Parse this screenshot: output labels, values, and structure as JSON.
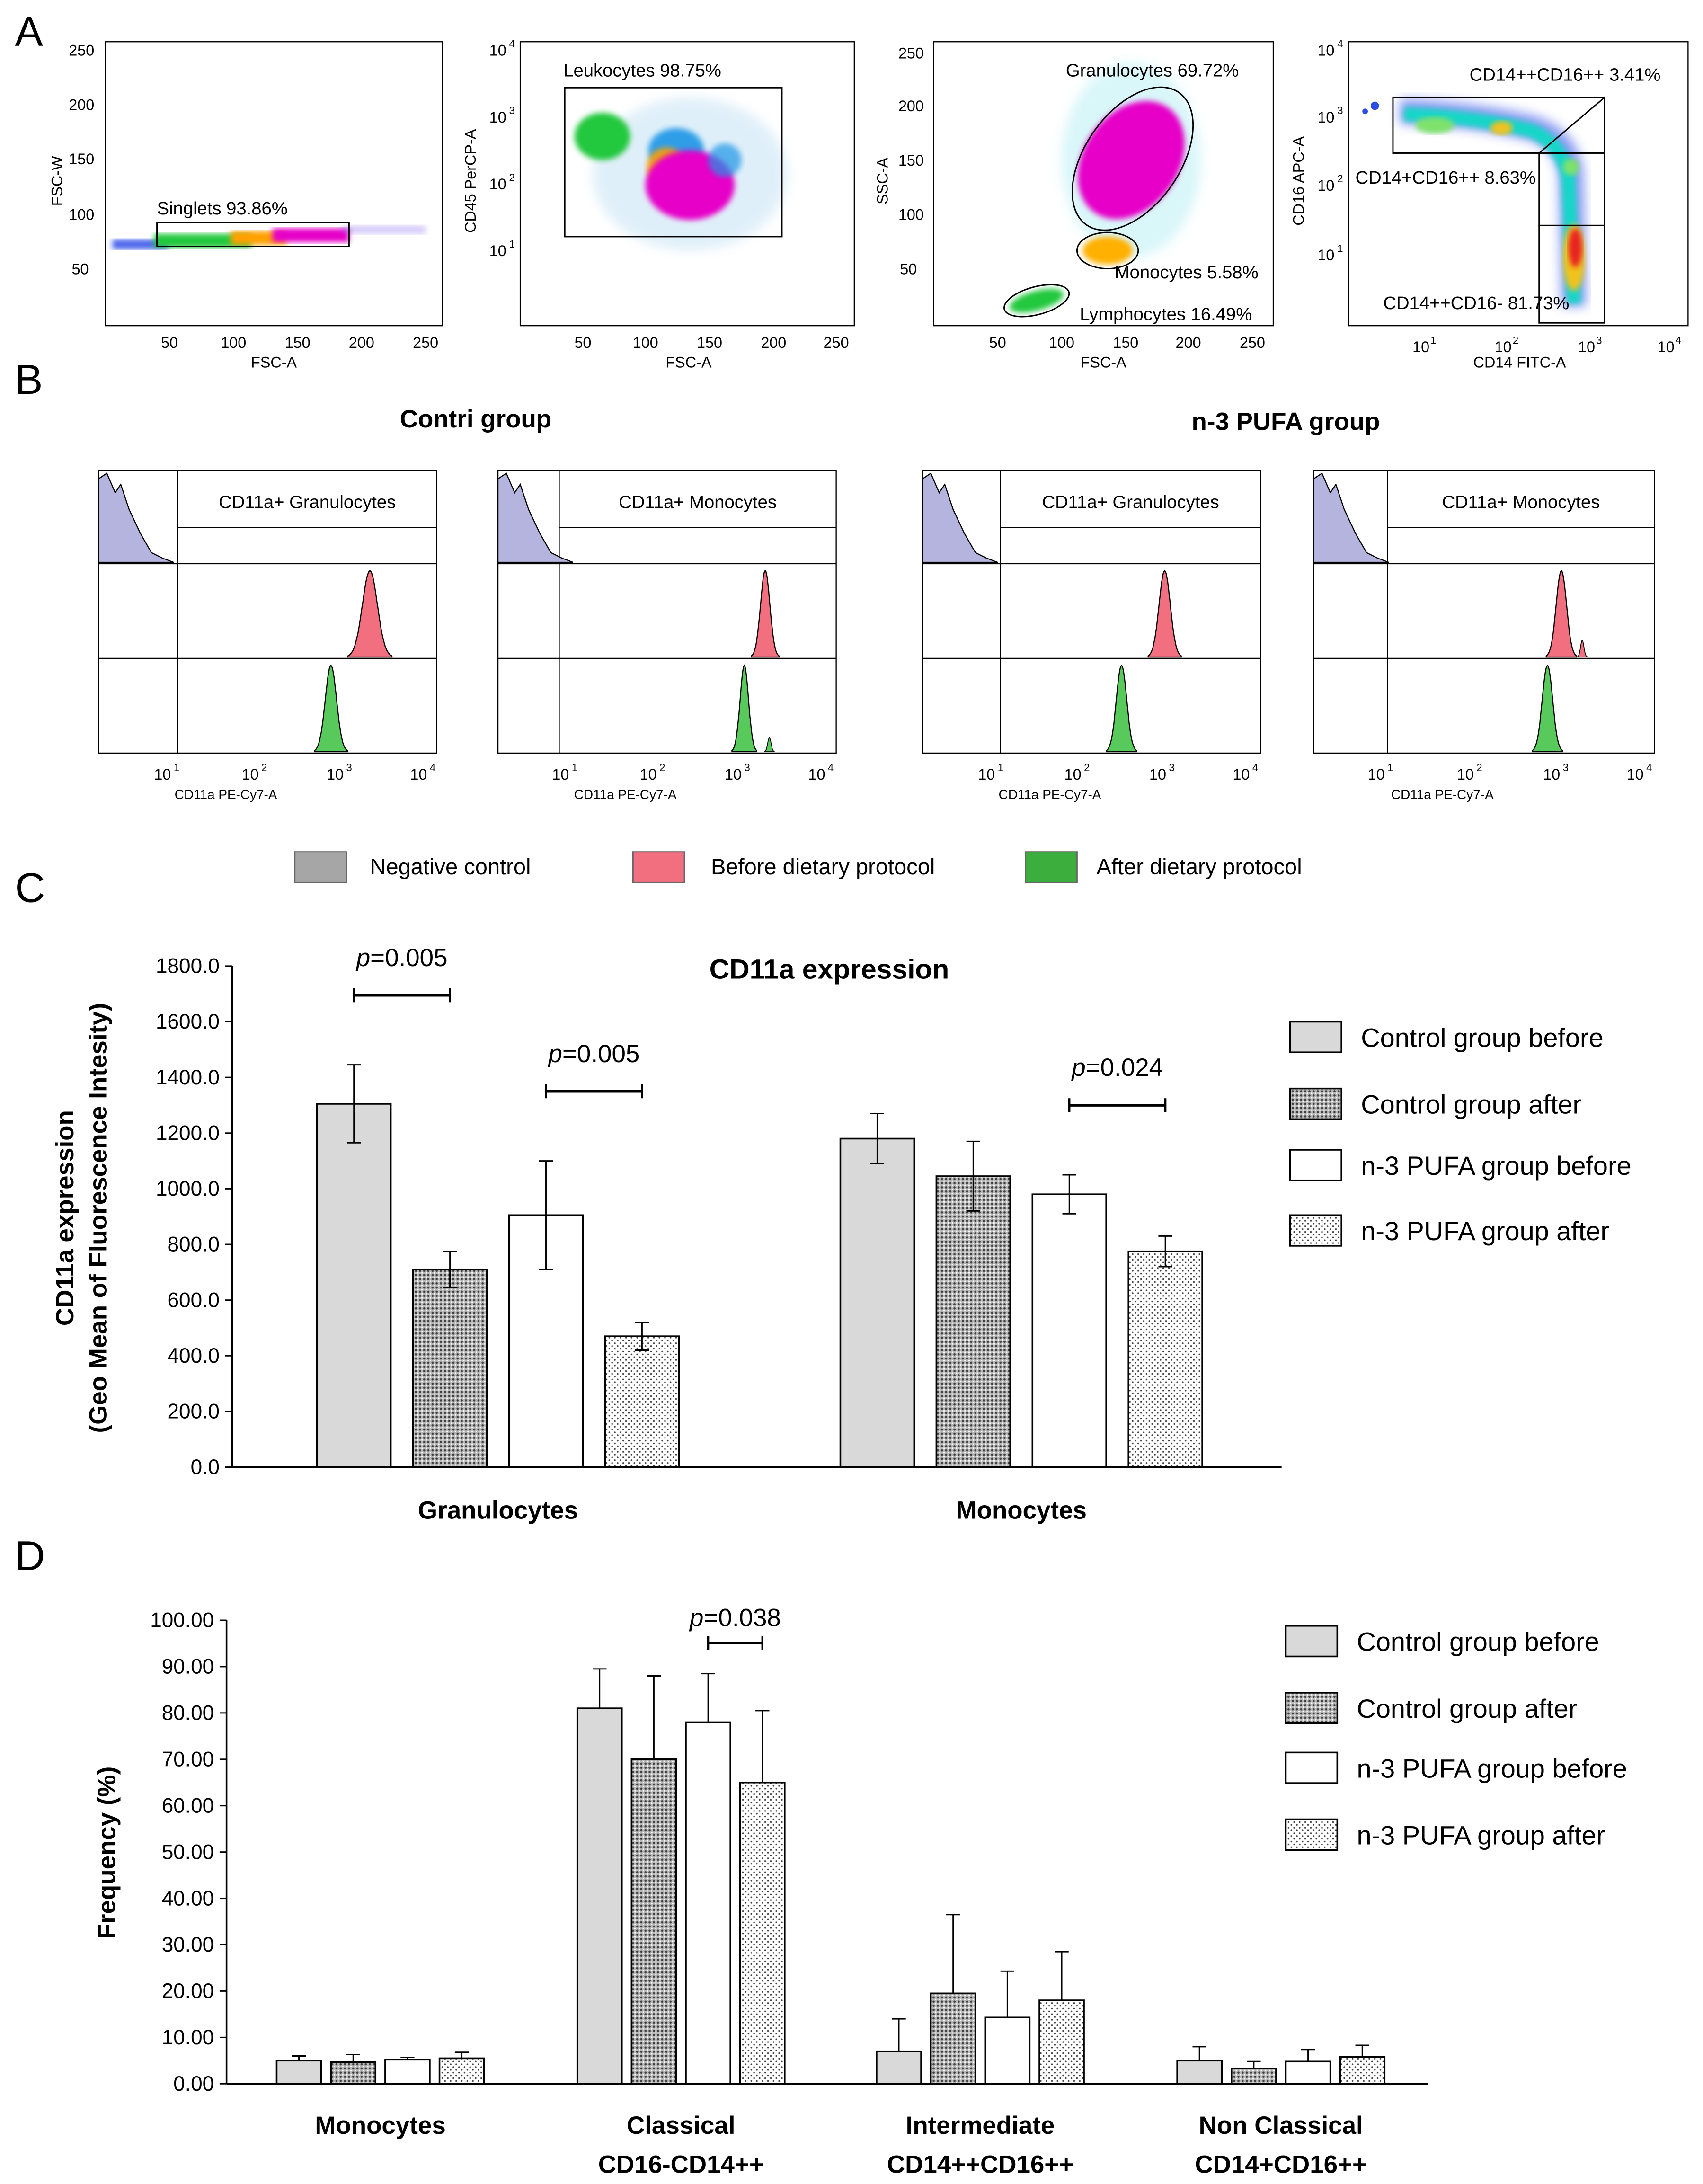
{
  "panels": {
    "a": "A",
    "b": "B",
    "c": "C",
    "d": "D"
  },
  "colors": {
    "neg": "#B4B4DE",
    "before": "#F26F80",
    "after": "#58C95B",
    "gray": "#D9D9D9"
  },
  "panel_a": {
    "plots": [
      {
        "xlabel": "FSC-A",
        "ylabel": "FSC-W",
        "gate": "Singlets 93.86%",
        "xticks": [
          "50",
          "100",
          "150",
          "200",
          "250"
        ],
        "yticks": [
          "250",
          "200",
          "150",
          "100",
          "50"
        ]
      },
      {
        "xlabel": "FSC-A",
        "ylabel": "CD45 PerCP-A",
        "gate": "Leukocytes 98.75%",
        "xticks": [
          "50",
          "100",
          "150",
          "200",
          "250"
        ],
        "yticks_log": [
          "10",
          "10",
          "10"
        ],
        "yexp": [
          "4",
          "3",
          "2",
          "1"
        ]
      },
      {
        "xlabel": "FSC-A",
        "ylabel": "SSC-A",
        "gates": [
          "Granulocytes 69.72%",
          "Monocytes 5.58%",
          "Lymphocytes 16.49%"
        ],
        "xticks": [
          "50",
          "100",
          "150",
          "200",
          "250"
        ],
        "yticks": [
          "250",
          "200",
          "150",
          "100",
          "50"
        ]
      },
      {
        "xlabel": "CD14 FITC-A",
        "ylabel": "CD16 APC-A",
        "gates": [
          "CD14++CD16++ 3.41%",
          "CD14+CD16++ 8.63%",
          "CD14++CD16- 81.73%"
        ],
        "exp": [
          "4",
          "3",
          "2",
          "1"
        ],
        "xexp": [
          "1",
          "2",
          "3",
          "4"
        ],
        "base": "10"
      }
    ]
  },
  "panel_b": {
    "group_control": "Contri group",
    "group_pufa": "n-3 PUFA group",
    "hist": [
      {
        "title": "CD11a+ Granulocytes",
        "xlabel": "CD11a PE-Cy7-A"
      },
      {
        "title": "CD11a+ Monocytes",
        "xlabel": "CD11a PE-Cy7-A"
      },
      {
        "title": "CD11a+ Granulocytes",
        "xlabel": "CD11a PE-Cy7-A"
      },
      {
        "title": "CD11a+ Monocytes",
        "xlabel": "CD11a PE-Cy7-A"
      }
    ],
    "base": "10",
    "exps": [
      "1",
      "2",
      "3",
      "4"
    ],
    "legend": [
      "Negative control",
      "Before dietary protocol",
      "After dietary protocol"
    ]
  },
  "chart_data": [
    {
      "type": "bar",
      "title": "CD11a expression",
      "ylabel": "CD11a  expression",
      "ylabel2": "(Geo Mean of Fluorescence Intesity)",
      "xlabel": "",
      "categories": [
        "Granulocytes",
        "Monocytes"
      ],
      "ylim": [
        0,
        1800
      ],
      "yticks": [
        "0.0",
        "200.0",
        "400.0",
        "600.0",
        "800.0",
        "1000.0",
        "1200.0",
        "1400.0",
        "1600.0",
        "1800.0"
      ],
      "series": [
        {
          "name": "Control group before",
          "values": [
            1305,
            1180
          ],
          "errors": [
            140,
            90
          ]
        },
        {
          "name": "Control group after",
          "values": [
            710,
            1045
          ],
          "errors": [
            65,
            125
          ]
        },
        {
          "name": "n-3 PUFA group before",
          "values": [
            905,
            980
          ],
          "errors": [
            195,
            70
          ]
        },
        {
          "name": "n-3 PUFA group after",
          "values": [
            470,
            775
          ],
          "errors": [
            50,
            55
          ]
        }
      ],
      "annotations": [
        {
          "p": "p",
          "text": "=0.005",
          "category": "Granulocytes",
          "pair": "control"
        },
        {
          "p": "p",
          "text": "=0.005",
          "category": "Granulocytes",
          "pair": "pufa"
        },
        {
          "p": "p",
          "text": "=0.024",
          "category": "Monocytes",
          "pair": "pufa"
        }
      ]
    },
    {
      "type": "bar",
      "title": "",
      "ylabel": "Frequency (%)",
      "xlabel": "",
      "categories": [
        "Monocytes",
        "Classical",
        "Intermediate",
        "Non Classical"
      ],
      "categories2": [
        "",
        "CD16-CD14++",
        "CD14++CD16++",
        "CD14+CD16++"
      ],
      "ylim": [
        0,
        100
      ],
      "yticks": [
        "0.00",
        "10.00",
        "20.00",
        "30.00",
        "40.00",
        "50.00",
        "60.00",
        "70.00",
        "80.00",
        "90.00",
        "100.00"
      ],
      "series": [
        {
          "name": "Control group before",
          "values": [
            5,
            81,
            7,
            5
          ],
          "errors": [
            1,
            8.5,
            7,
            3
          ]
        },
        {
          "name": "Control group after",
          "values": [
            4.7,
            70,
            19.5,
            3.3
          ],
          "errors": [
            1.6,
            18,
            17,
            1.5
          ]
        },
        {
          "name": "n-3 PUFA group before",
          "values": [
            5.2,
            78,
            14.3,
            4.8
          ],
          "errors": [
            0.5,
            10.5,
            10,
            2.6
          ]
        },
        {
          "name": "n-3 PUFA group after",
          "values": [
            5.5,
            65,
            18,
            5.8
          ],
          "errors": [
            1.3,
            15.5,
            10.5,
            2.5
          ]
        }
      ],
      "annotations": [
        {
          "p": "p",
          "text": "=0.038",
          "category": "Classical",
          "pair": "pufa"
        }
      ]
    }
  ]
}
